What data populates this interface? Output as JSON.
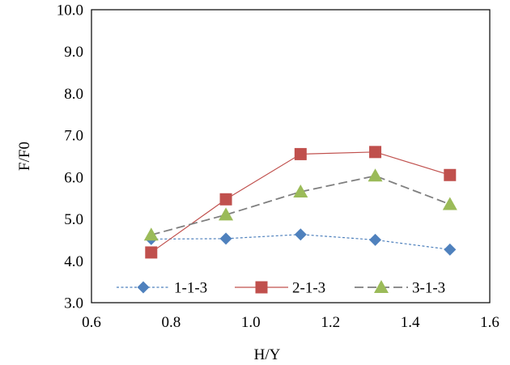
{
  "chart_data": {
    "type": "line",
    "xlabel": "H/Y",
    "ylabel": "F/F0",
    "xlim": [
      0.6,
      1.6
    ],
    "ylim": [
      3.0,
      10.0
    ],
    "x_ticks": [
      "0.6",
      "0.8",
      "1.0",
      "1.2",
      "1.4",
      "1.6"
    ],
    "y_ticks": [
      "3.0",
      "4.0",
      "5.0",
      "6.0",
      "7.0",
      "8.0",
      "9.0",
      "10.0"
    ],
    "x_tick_values": [
      0.6,
      0.8,
      1.0,
      1.2,
      1.4,
      1.6
    ],
    "y_tick_values": [
      3,
      4,
      5,
      6,
      7,
      8,
      9,
      10
    ],
    "grid": false,
    "legend_position": "bottom-inside",
    "series": [
      {
        "name": "1-1-3",
        "color": "#4f81bd",
        "marker": "diamond",
        "line_style": "dotted",
        "x": [
          0.75,
          0.9375,
          1.125,
          1.3125,
          1.5
        ],
        "y": [
          4.52,
          4.53,
          4.63,
          4.5,
          4.27
        ]
      },
      {
        "name": "2-1-3",
        "color": "#c0504d",
        "marker": "square",
        "line_style": "solid",
        "x": [
          0.75,
          0.9375,
          1.125,
          1.3125,
          1.5
        ],
        "y": [
          4.2,
          5.47,
          6.55,
          6.6,
          6.05
        ]
      },
      {
        "name": "3-1-3",
        "color": "#9bbb59",
        "marker": "triangle",
        "line_style": "dashed",
        "line_color": "#7f7f7f",
        "x": [
          0.75,
          0.9375,
          1.125,
          1.3125,
          1.5
        ],
        "y": [
          4.62,
          5.1,
          5.65,
          6.03,
          5.35
        ]
      }
    ]
  }
}
